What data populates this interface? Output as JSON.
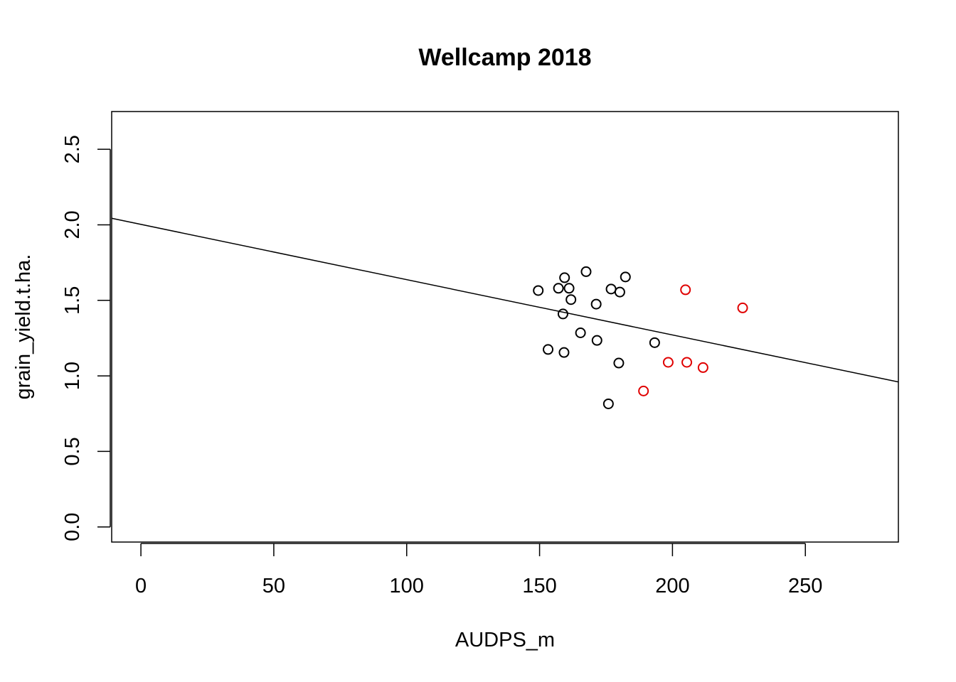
{
  "chart_data": {
    "type": "scatter",
    "title": "Wellcamp 2018",
    "xlabel": "AUDPS_m",
    "ylabel": "grain_yield.t.ha.",
    "xlim": [
      -11,
      285
    ],
    "ylim": [
      -0.1,
      2.75
    ],
    "xticks": [
      0,
      50,
      100,
      150,
      200,
      250
    ],
    "yticks": [
      0.0,
      0.5,
      1.0,
      1.5,
      2.0,
      2.5
    ],
    "xtick_labels": [
      "0",
      "50",
      "100",
      "150",
      "200",
      "250"
    ],
    "ytick_labels": [
      "0.0",
      "0.5",
      "1.0",
      "1.5",
      "2.0",
      "2.5"
    ],
    "grid": false,
    "colors": {
      "group1": "#000000",
      "group2": "#e00000",
      "line": "#000000"
    },
    "series": [
      {
        "color": "#000000",
        "points": [
          {
            "x": 149.5,
            "y": 1.565
          },
          {
            "x": 157.1,
            "y": 1.58
          },
          {
            "x": 159.4,
            "y": 1.65
          },
          {
            "x": 161.1,
            "y": 1.58
          },
          {
            "x": 161.8,
            "y": 1.505
          },
          {
            "x": 167.5,
            "y": 1.69
          },
          {
            "x": 158.8,
            "y": 1.41
          },
          {
            "x": 153.2,
            "y": 1.175
          },
          {
            "x": 159.2,
            "y": 1.155
          },
          {
            "x": 165.4,
            "y": 1.285
          },
          {
            "x": 171.3,
            "y": 1.475
          },
          {
            "x": 171.6,
            "y": 1.235
          },
          {
            "x": 176.9,
            "y": 1.575
          },
          {
            "x": 180.2,
            "y": 1.555
          },
          {
            "x": 182.3,
            "y": 1.655
          },
          {
            "x": 179.8,
            "y": 1.085
          },
          {
            "x": 175.9,
            "y": 0.815
          },
          {
            "x": 193.3,
            "y": 1.22
          }
        ]
      },
      {
        "color": "#e00000",
        "points": [
          {
            "x": 204.9,
            "y": 1.57
          },
          {
            "x": 226.4,
            "y": 1.45
          },
          {
            "x": 198.4,
            "y": 1.09
          },
          {
            "x": 205.4,
            "y": 1.09
          },
          {
            "x": 211.5,
            "y": 1.055
          },
          {
            "x": 189.1,
            "y": 0.9
          }
        ]
      }
    ],
    "regression_line": {
      "intercept": 2.003,
      "slope": -0.00366
    }
  }
}
